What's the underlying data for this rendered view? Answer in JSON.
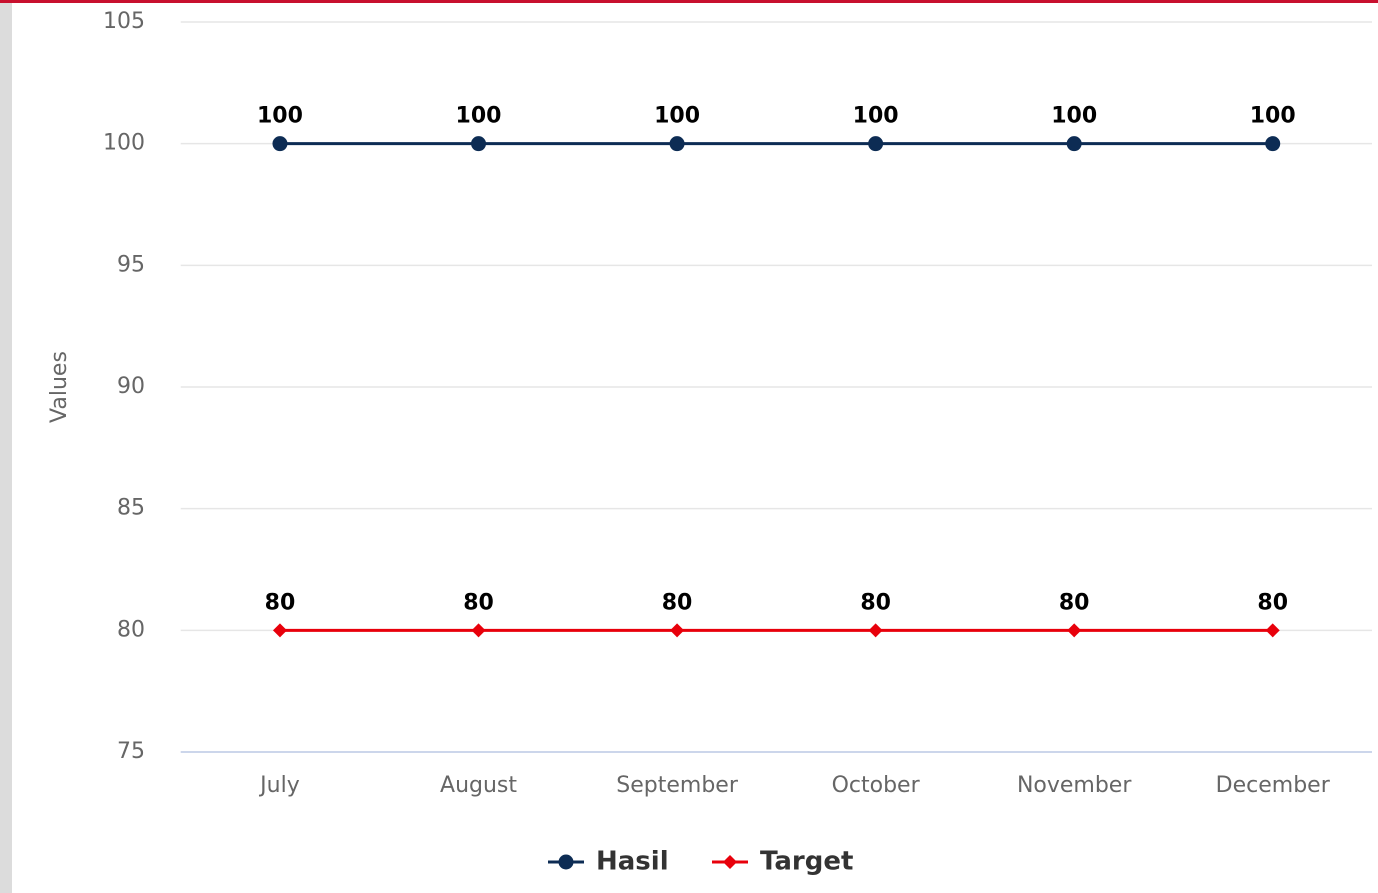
{
  "chart_data": {
    "type": "line",
    "y_axis_label": "Values",
    "categories": [
      "July",
      "August",
      "September",
      "October",
      "November",
      "December"
    ],
    "series": [
      {
        "name": "Hasil",
        "color": "#0d2c54",
        "marker": "circle",
        "values": [
          100,
          100,
          100,
          100,
          100,
          100
        ]
      },
      {
        "name": "Target",
        "color": "#e8000b",
        "marker": "diamond",
        "values": [
          80,
          80,
          80,
          80,
          80,
          80
        ]
      }
    ],
    "ylim": [
      75,
      105
    ],
    "yticks": [
      75,
      80,
      85,
      90,
      95,
      100,
      105
    ],
    "grid": true,
    "legend": "bottom",
    "data_labels": true
  }
}
